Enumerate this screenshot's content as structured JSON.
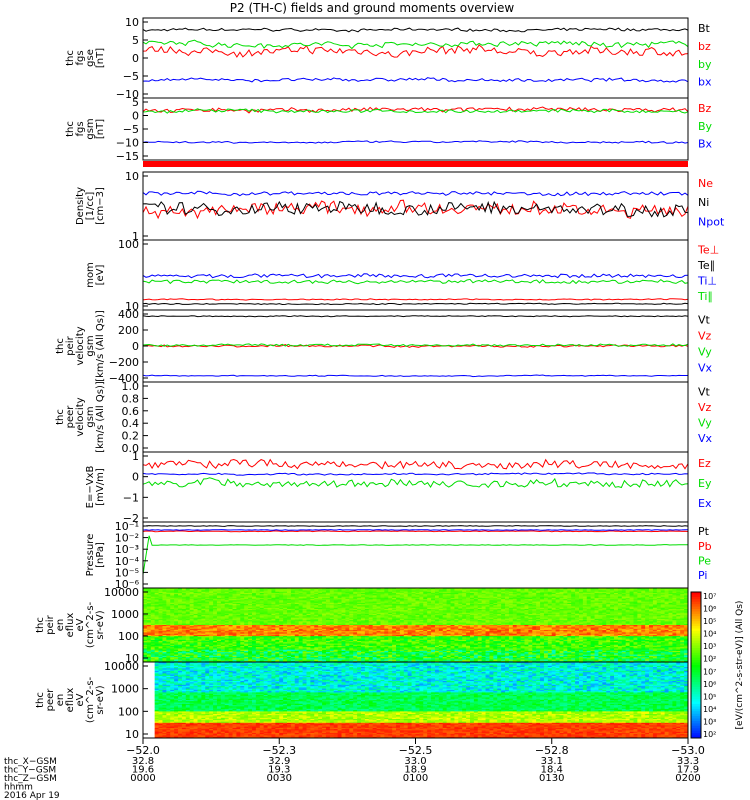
{
  "title": "P2 (TH-C) fields and ground moments overview",
  "colors": {
    "black": "#000000",
    "red": "#ff0000",
    "green": "#00dd00",
    "blue": "#0000ff"
  },
  "chart_data": [
    {
      "id": "fgs_gse",
      "type": "line",
      "ylabel": [
        "thc",
        "fgs",
        "gse",
        "[nT]"
      ],
      "ylim": [
        -10,
        10
      ],
      "yticks": [
        "10",
        "5",
        "0",
        "−5",
        "−10"
      ],
      "series": [
        {
          "name": "Bt",
          "color": "black",
          "mean": 7,
          "noise": 0.6
        },
        {
          "name": "bz",
          "color": "red",
          "mean": 1.5,
          "noise": 1.8
        },
        {
          "name": "by",
          "color": "green",
          "mean": 3.5,
          "noise": 1.2
        },
        {
          "name": "bx",
          "color": "blue",
          "mean": -5.5,
          "noise": 0.7
        }
      ]
    },
    {
      "id": "fgs_gsm",
      "type": "line",
      "ylabel": [
        "thc",
        "fgs",
        "gsm",
        "[nT]"
      ],
      "ylim": [
        -18,
        8
      ],
      "yticks": [
        "5",
        "0",
        "−5",
        "−10",
        "−15"
      ],
      "series": [
        {
          "name": "Bz",
          "color": "red",
          "mean": 3,
          "noise": 1.6
        },
        {
          "name": "By",
          "color": "green",
          "mean": 2.5,
          "noise": 1.2
        },
        {
          "name": "Bx",
          "color": "blue",
          "mean": -10.5,
          "noise": 0.7
        }
      ]
    },
    {
      "id": "density",
      "type": "line",
      "log": true,
      "ylabel": [
        "Density",
        "[1/cc]",
        "[cm−3]"
      ],
      "ylim": [
        1,
        10
      ],
      "yticks": [
        "10",
        "1"
      ],
      "series": [
        {
          "name": "Ne",
          "color": "red",
          "mean": 2.8,
          "noise": 0.18
        },
        {
          "name": "Ni",
          "color": "black",
          "mean": 2.9,
          "noise": 0.18
        },
        {
          "name": "Npot",
          "color": "blue",
          "mean": 4.8,
          "noise": 0.05
        }
      ]
    },
    {
      "id": "temperature",
      "type": "line",
      "log": true,
      "ylabel": [
        "mom",
        "[eV]"
      ],
      "ylim": [
        10,
        1000
      ],
      "yticks": [
        "100",
        "10"
      ],
      "series": [
        {
          "name": "Te⊥",
          "color": "red",
          "mean": 20,
          "noise": 0.03
        },
        {
          "name": "Te∥",
          "color": "black",
          "mean": 15,
          "noise": 0.03
        },
        {
          "name": "Ti⊥",
          "color": "blue",
          "mean": 95,
          "noise": 0.1
        },
        {
          "name": "Ti∥",
          "color": "green",
          "mean": 65,
          "noise": 0.1
        }
      ]
    },
    {
      "id": "peir_velocity",
      "type": "line",
      "ylabel": [
        "thc",
        "peir",
        "velocity",
        "gsm",
        "[km/s (All Qs)]"
      ],
      "ylim": [
        -400,
        400
      ],
      "yticks": [
        "400",
        "200",
        "0",
        "−200",
        "−400"
      ],
      "series": [
        {
          "name": "Vt",
          "color": "black",
          "mean": 330,
          "noise": 10
        },
        {
          "name": "Vz",
          "color": "red",
          "mean": 0,
          "noise": 20
        },
        {
          "name": "Vy",
          "color": "green",
          "mean": 10,
          "noise": 22
        },
        {
          "name": "Vx",
          "color": "blue",
          "mean": -330,
          "noise": 10
        }
      ]
    },
    {
      "id": "peer_velocity",
      "type": "line",
      "empty": true,
      "ylabel": [
        "thc",
        "peer",
        "velocity",
        "gsm",
        "[km/s (All Qs)]"
      ],
      "ylim": [
        0,
        1
      ],
      "yticks": [
        "1.0",
        "0.8",
        "0.6",
        "0.4",
        "0.2",
        "0.0"
      ],
      "series": [
        {
          "name": "Vt",
          "color": "black"
        },
        {
          "name": "Vz",
          "color": "red"
        },
        {
          "name": "Vy",
          "color": "green"
        },
        {
          "name": "Vx",
          "color": "blue"
        }
      ]
    },
    {
      "id": "efield",
      "type": "line",
      "ylabel": [
        "E=−VxB",
        "[mV/m]"
      ],
      "ylim": [
        -2,
        1
      ],
      "yticks": [
        "1",
        "0",
        "−1",
        "−2"
      ],
      "series": [
        {
          "name": "Ez",
          "color": "red",
          "mean": 0.5,
          "noise": 0.3
        },
        {
          "name": "Ey",
          "color": "green",
          "mean": -0.35,
          "noise": 0.3
        },
        {
          "name": "Ex",
          "color": "blue",
          "mean": 0.05,
          "noise": 0.06
        }
      ]
    },
    {
      "id": "pressure",
      "type": "line",
      "log": true,
      "ylabel": [
        "Pressure",
        "[nPa]"
      ],
      "ylim": [
        1e-06,
        0.1
      ],
      "yticks": [
        "10⁻¹",
        "10⁻²",
        "10⁻³",
        "10⁻⁴",
        "10⁻⁵",
        "10⁻⁶"
      ],
      "series": [
        {
          "name": "Pt",
          "color": "black",
          "mean": 0.05,
          "noise": 0.05
        },
        {
          "name": "Pb",
          "color": "red",
          "mean": 0.02,
          "noise": 0.05
        },
        {
          "name": "Pe",
          "color": "green",
          "mean": 0.0018,
          "noise": 0.05
        },
        {
          "name": "Pi",
          "color": "blue",
          "mean": 0.025,
          "noise": 0.04
        }
      ]
    },
    {
      "id": "peir_spectrogram",
      "type": "heatmap",
      "log": true,
      "ylabel": [
        "thc",
        "peir",
        "en",
        "eflux",
        "eV",
        "(cm^2-s-",
        "sr-eV)"
      ],
      "ylim": [
        5,
        20000
      ],
      "yticks": [
        "10000",
        "1000",
        "100",
        "10"
      ]
    },
    {
      "id": "peer_spectrogram",
      "type": "heatmap",
      "log": true,
      "ylabel": [
        "thc",
        "peer",
        "en",
        "eflux",
        "eV",
        "(cm^2-s-",
        "sr-eV)"
      ],
      "ylim": [
        5,
        20000
      ],
      "yticks": [
        "10000",
        "1000",
        "100",
        "10"
      ]
    }
  ],
  "colorbar": {
    "label": "[eV/(cm^2-s-str-eV)]",
    "top_label": "(All Qs)",
    "ticks": [
      "10⁷",
      "10⁶",
      "10⁵",
      "10⁴",
      "10³",
      "10²",
      "10⁷",
      "10⁶",
      "10⁵",
      "10⁴",
      "10³",
      "10²"
    ]
  },
  "x_axis": {
    "ticks_top": [
      "−52.0",
      "−52.3",
      "−52.5",
      "−52.8",
      "−53.0"
    ],
    "rows": [
      {
        "label": "thc_X−GSM",
        "values": [
          "32.8",
          "32.9",
          "33.0",
          "33.1",
          "33.3"
        ]
      },
      {
        "label": "thc_Y−GSM",
        "values": [
          "19.6",
          "19.3",
          "18.9",
          "18.4",
          "17.9"
        ]
      },
      {
        "label": "thc_Z−GSM",
        "values": [
          "0000",
          "0030",
          "0100",
          "0130",
          "0200"
        ]
      },
      {
        "label": "hhmm",
        "values": [
          "",
          "",
          "",
          "",
          ""
        ]
      }
    ],
    "date": "2016 Apr 19"
  }
}
